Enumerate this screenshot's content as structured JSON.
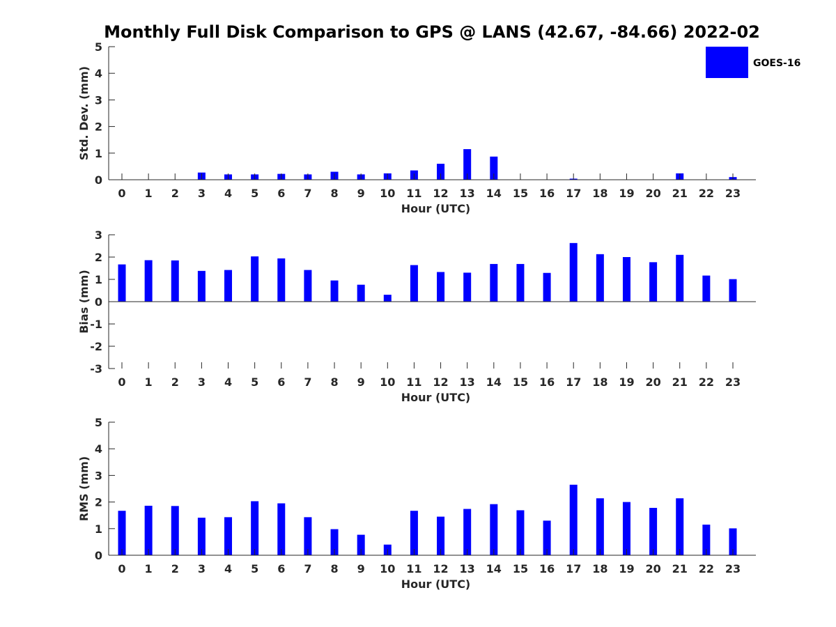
{
  "title": "Monthly Full Disk Comparison to GPS @ LANS (42.67, -84.66) 2022-02",
  "legend": {
    "label": "GOES-16",
    "color": "#0000ff",
    "placement": "top-right"
  },
  "chart_data": [
    {
      "type": "bar",
      "xlabel": "Hour (UTC)",
      "ylabel": "Std. Dev. (mm)",
      "ylim": [
        0,
        5
      ],
      "yticks": [
        "0",
        "1",
        "2",
        "3",
        "4",
        "5"
      ],
      "categories": [
        "0",
        "1",
        "2",
        "3",
        "4",
        "5",
        "6",
        "7",
        "8",
        "9",
        "10",
        "11",
        "12",
        "13",
        "14",
        "15",
        "16",
        "17",
        "18",
        "19",
        "20",
        "21",
        "22",
        "23"
      ],
      "series": [
        {
          "name": "GOES-16",
          "values": [
            0,
            0,
            0,
            0.27,
            0.2,
            0.2,
            0.22,
            0.2,
            0.3,
            0.2,
            0.24,
            0.35,
            0.6,
            1.15,
            0.87,
            0,
            0,
            0.04,
            0,
            0,
            0,
            0.24,
            0,
            0.1
          ]
        }
      ]
    },
    {
      "type": "bar",
      "xlabel": "Hour (UTC)",
      "ylabel": "Bias (mm)",
      "ylim": [
        -3,
        3
      ],
      "yticks": [
        "-3",
        "-2",
        "-1",
        "0",
        "1",
        "2",
        "3"
      ],
      "categories": [
        "0",
        "1",
        "2",
        "3",
        "4",
        "5",
        "6",
        "7",
        "8",
        "9",
        "10",
        "11",
        "12",
        "13",
        "14",
        "15",
        "16",
        "17",
        "18",
        "19",
        "20",
        "21",
        "22",
        "23"
      ],
      "series": [
        {
          "name": "GOES-16",
          "values": [
            1.67,
            1.86,
            1.85,
            1.38,
            1.42,
            2.03,
            1.94,
            1.42,
            0.95,
            0.76,
            0.31,
            1.64,
            1.33,
            1.3,
            1.69,
            1.69,
            1.29,
            2.63,
            2.13,
            2.0,
            1.77,
            2.1,
            1.17,
            1.01
          ]
        }
      ]
    },
    {
      "type": "bar",
      "xlabel": "Hour (UTC)",
      "ylabel": "RMS (mm)",
      "ylim": [
        0,
        5
      ],
      "yticks": [
        "0",
        "1",
        "2",
        "3",
        "4",
        "5"
      ],
      "categories": [
        "0",
        "1",
        "2",
        "3",
        "4",
        "5",
        "6",
        "7",
        "8",
        "9",
        "10",
        "11",
        "12",
        "13",
        "14",
        "15",
        "16",
        "17",
        "18",
        "19",
        "20",
        "21",
        "22",
        "23"
      ],
      "series": [
        {
          "name": "GOES-16",
          "values": [
            1.67,
            1.86,
            1.85,
            1.41,
            1.43,
            2.03,
            1.95,
            1.43,
            0.98,
            0.77,
            0.4,
            1.67,
            1.45,
            1.74,
            1.92,
            1.69,
            1.3,
            2.65,
            2.14,
            2.0,
            1.78,
            2.14,
            1.15,
            1.01
          ]
        }
      ]
    }
  ]
}
